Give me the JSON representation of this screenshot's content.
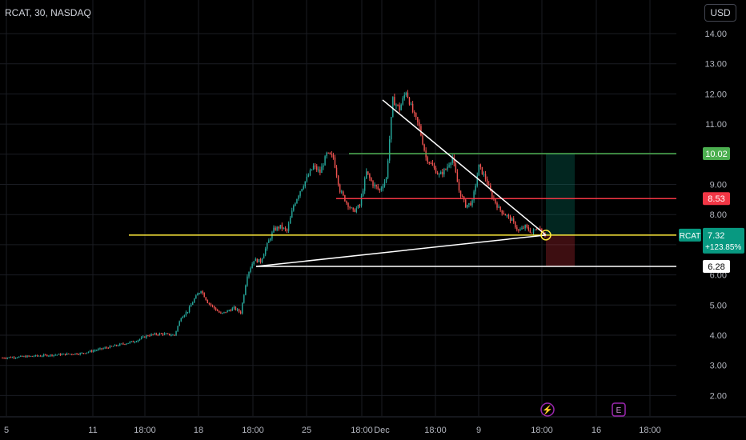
{
  "header": {
    "symbol_line": "RCAT, 30, NASDAQ",
    "currency_button": "USD"
  },
  "chart_data": {
    "type": "candlestick",
    "y_ticks": [
      "14.00",
      "13.00",
      "12.00",
      "11.00",
      "10.00",
      "9.00",
      "8.00",
      "7.00",
      "6.00",
      "5.00",
      "4.00",
      "3.00",
      "2.00"
    ],
    "ylim": [
      1.6,
      14.6
    ],
    "x_ticks": [
      "5",
      "11",
      "18:00",
      "18",
      "18:00",
      "25",
      "18:00",
      "Dec",
      "18:00",
      "9",
      "18:00",
      "16",
      "18:00"
    ],
    "price_path": [
      [
        0,
        3.25
      ],
      [
        4,
        3.3
      ],
      [
        8,
        3.35
      ],
      [
        12,
        3.4
      ],
      [
        14,
        3.5
      ],
      [
        16,
        3.6
      ],
      [
        18,
        3.7
      ],
      [
        20,
        3.8
      ],
      [
        22,
        4.0
      ],
      [
        24,
        4.05
      ],
      [
        26,
        4.0
      ],
      [
        27,
        4.6
      ],
      [
        28,
        4.8
      ],
      [
        29,
        5.2
      ],
      [
        30,
        5.5
      ],
      [
        31,
        5.1
      ],
      [
        32,
        4.9
      ],
      [
        33,
        4.7
      ],
      [
        34,
        4.8
      ],
      [
        35,
        4.9
      ],
      [
        36,
        4.75
      ],
      [
        37,
        6.0
      ],
      [
        38,
        6.5
      ],
      [
        39,
        6.45
      ],
      [
        40,
        7.0
      ],
      [
        41,
        7.5
      ],
      [
        42,
        7.6
      ],
      [
        43,
        7.45
      ],
      [
        44,
        8.3
      ],
      [
        45,
        8.8
      ],
      [
        46,
        9.2
      ],
      [
        47,
        9.6
      ],
      [
        48,
        9.4
      ],
      [
        49,
        10.0
      ],
      [
        50,
        9.9
      ],
      [
        51,
        8.8
      ],
      [
        52,
        8.4
      ],
      [
        53,
        8.1
      ],
      [
        54,
        8.3
      ],
      [
        55,
        9.4
      ],
      [
        56,
        9.0
      ],
      [
        57,
        8.8
      ],
      [
        58,
        9.2
      ],
      [
        59,
        11.8
      ],
      [
        60,
        11.5
      ],
      [
        61,
        12.1
      ],
      [
        62,
        11.4
      ],
      [
        63,
        10.9
      ],
      [
        64,
        9.9
      ],
      [
        65,
        9.6
      ],
      [
        66,
        9.3
      ],
      [
        67,
        9.5
      ],
      [
        68,
        9.9
      ],
      [
        69,
        8.8
      ],
      [
        70,
        8.3
      ],
      [
        71,
        8.4
      ],
      [
        72,
        9.6
      ],
      [
        73,
        9.2
      ],
      [
        74,
        8.6
      ],
      [
        75,
        8.2
      ],
      [
        76,
        8.0
      ],
      [
        77,
        7.8
      ],
      [
        78,
        7.45
      ],
      [
        79,
        7.6
      ],
      [
        80,
        7.4
      ],
      [
        81,
        7.6
      ],
      [
        82,
        7.32
      ]
    ],
    "levels": [
      {
        "price": 10.02,
        "label": "10.02",
        "color": "#4caf50"
      },
      {
        "price": 8.53,
        "label": "8.53",
        "color": "#f23645"
      },
      {
        "price": 7.32,
        "label": "7.32",
        "color": "#ffeb3b"
      },
      {
        "price": 6.28,
        "label": "6.28",
        "color": "#ffffff"
      }
    ],
    "last_price": {
      "symbol": "RCAT",
      "price": "7.32",
      "change": "+123.85%",
      "color": "#089981"
    },
    "colors": {
      "up": "#26a69a",
      "down": "#ef5350",
      "grid": "#1a1c22",
      "axis_text": "#b2b5be"
    }
  }
}
